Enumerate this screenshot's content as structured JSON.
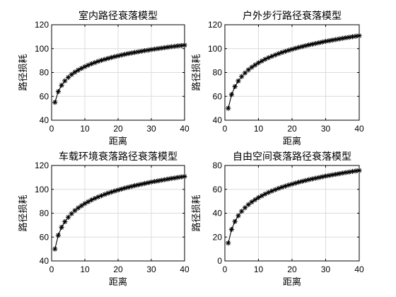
{
  "chart_data": [
    {
      "type": "line",
      "title": "室内路径衰落模型",
      "xlabel": "距离",
      "ylabel": "路径损耗",
      "xlim": [
        0,
        40
      ],
      "ylim": [
        40,
        120
      ],
      "xticks": [
        0,
        10,
        20,
        30,
        40
      ],
      "yticks": [
        40,
        60,
        80,
        100,
        120
      ],
      "grid": true,
      "marker": "asterisk",
      "series": [
        {
          "x": [
            1,
            2,
            3,
            4,
            5,
            6,
            7,
            8,
            9,
            10,
            11,
            12,
            13,
            14,
            15,
            16,
            17,
            18,
            19,
            20,
            21,
            22,
            23,
            24,
            25,
            26,
            27,
            28,
            29,
            30,
            31,
            32,
            33,
            34,
            35,
            36,
            37,
            38,
            39,
            40
          ],
          "values": [
            55.0,
            64.0,
            69.3,
            73.0,
            75.9,
            78.3,
            80.3,
            82.0,
            83.5,
            84.9,
            86.1,
            87.3,
            88.3,
            89.3,
            90.2,
            91.0,
            91.8,
            92.6,
            93.3,
            93.9,
            94.6,
            95.2,
            95.8,
            96.3,
            96.8,
            97.3,
            97.8,
            98.3,
            98.7,
            99.2,
            99.6,
            100.0,
            100.4,
            100.8,
            101.2,
            101.6,
            101.9,
            102.3,
            102.6,
            102.9
          ]
        }
      ]
    },
    {
      "type": "line",
      "title": "户外步行路径衰落模型",
      "xlabel": "距离",
      "ylabel": "路径损耗",
      "xlim": [
        0,
        40
      ],
      "ylim": [
        40,
        120
      ],
      "xticks": [
        0,
        10,
        20,
        30,
        40
      ],
      "yticks": [
        40,
        60,
        80,
        100,
        120
      ],
      "grid": true,
      "marker": "asterisk",
      "series": [
        {
          "x": [
            1,
            2,
            3,
            4,
            5,
            6,
            7,
            8,
            9,
            10,
            11,
            12,
            13,
            14,
            15,
            16,
            17,
            18,
            19,
            20,
            21,
            22,
            23,
            24,
            25,
            26,
            27,
            28,
            29,
            30,
            31,
            32,
            33,
            34,
            35,
            36,
            37,
            38,
            39,
            40
          ],
          "values": [
            50.0,
            61.5,
            68.2,
            72.9,
            76.6,
            79.6,
            82.2,
            84.4,
            86.3,
            88.1,
            89.6,
            91.1,
            92.4,
            93.6,
            94.7,
            95.8,
            96.8,
            97.7,
            98.6,
            99.4,
            100.2,
            101.0,
            101.7,
            102.4,
            103.1,
            103.7,
            104.3,
            104.9,
            105.5,
            106.1,
            106.6,
            107.1,
            107.6,
            108.1,
            108.6,
            109.1,
            109.5,
            110.0,
            110.4,
            110.8
          ]
        }
      ]
    },
    {
      "type": "line",
      "title": "车载环境衰落路径衰落模型",
      "xlabel": "距离",
      "ylabel": "路径损耗",
      "xlim": [
        0,
        40
      ],
      "ylim": [
        40,
        120
      ],
      "xticks": [
        0,
        10,
        20,
        30,
        40
      ],
      "yticks": [
        40,
        60,
        80,
        100,
        120
      ],
      "grid": true,
      "marker": "asterisk",
      "series": [
        {
          "x": [
            1,
            2,
            3,
            4,
            5,
            6,
            7,
            8,
            9,
            10,
            11,
            12,
            13,
            14,
            15,
            16,
            17,
            18,
            19,
            20,
            21,
            22,
            23,
            24,
            25,
            26,
            27,
            28,
            29,
            30,
            31,
            32,
            33,
            34,
            35,
            36,
            37,
            38,
            39,
            40
          ],
          "values": [
            50.0,
            61.5,
            68.2,
            72.9,
            76.6,
            79.6,
            82.2,
            84.4,
            86.3,
            88.1,
            89.6,
            91.1,
            92.4,
            93.6,
            94.7,
            95.8,
            96.8,
            97.7,
            98.6,
            99.4,
            100.2,
            101.0,
            101.7,
            102.4,
            103.1,
            103.7,
            104.3,
            104.9,
            105.5,
            106.1,
            106.6,
            107.1,
            107.6,
            108.1,
            108.6,
            109.1,
            109.5,
            110.0,
            110.4,
            110.8
          ]
        }
      ]
    },
    {
      "type": "line",
      "title": "自由空间衰落路径衰落模型",
      "xlabel": "距离",
      "ylabel": "路径损耗",
      "xlim": [
        0,
        40
      ],
      "ylim": [
        0,
        80
      ],
      "xticks": [
        0,
        10,
        20,
        30,
        40
      ],
      "yticks": [
        0,
        20,
        40,
        60,
        80
      ],
      "grid": true,
      "marker": "asterisk",
      "series": [
        {
          "x": [
            1,
            2,
            3,
            4,
            5,
            6,
            7,
            8,
            9,
            10,
            11,
            12,
            13,
            14,
            15,
            16,
            17,
            18,
            19,
            20,
            21,
            22,
            23,
            24,
            25,
            26,
            27,
            28,
            29,
            30,
            31,
            32,
            33,
            34,
            35,
            36,
            37,
            38,
            39,
            40
          ],
          "values": [
            15.0,
            26.4,
            33.1,
            37.9,
            41.6,
            44.6,
            47.2,
            49.4,
            51.3,
            53.1,
            54.6,
            56.1,
            57.4,
            58.6,
            59.7,
            60.8,
            61.8,
            62.7,
            63.6,
            64.4,
            65.2,
            66.0,
            66.7,
            67.4,
            68.1,
            68.7,
            69.3,
            69.9,
            70.5,
            71.1,
            71.6,
            72.1,
            72.6,
            73.1,
            73.6,
            74.1,
            74.5,
            75.0,
            75.4,
            75.8
          ]
        }
      ]
    }
  ]
}
